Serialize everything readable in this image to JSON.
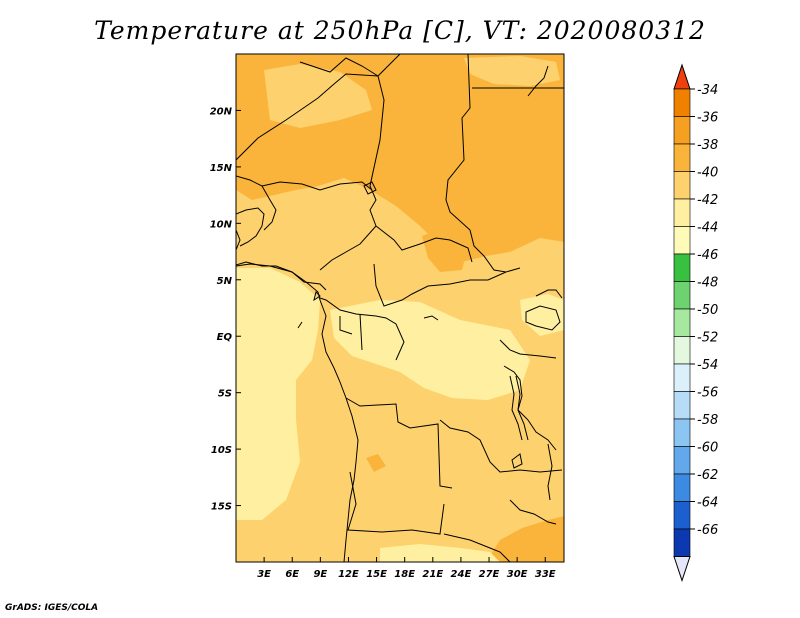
{
  "title": "Temperature at 250hPa [C], VT: 2020080312",
  "footer": "GrADS: IGES/COLA",
  "map": {
    "lon_range": [
      0,
      35
    ],
    "lat_range": [
      -20,
      25
    ],
    "lat_ticks": [
      {
        "lat": 20,
        "label": "20N"
      },
      {
        "lat": 15,
        "label": "15N"
      },
      {
        "lat": 10,
        "label": "10N"
      },
      {
        "lat": 5,
        "label": "5N"
      },
      {
        "lat": 0,
        "label": "EQ"
      },
      {
        "lat": -5,
        "label": "5S"
      },
      {
        "lat": -10,
        "label": "10S"
      },
      {
        "lat": -15,
        "label": "15S"
      }
    ],
    "lon_ticks": [
      {
        "lon": 3,
        "label": "3E"
      },
      {
        "lon": 6,
        "label": "6E"
      },
      {
        "lon": 9,
        "label": "9E"
      },
      {
        "lon": 12,
        "label": "12E"
      },
      {
        "lon": 15,
        "label": "15E"
      },
      {
        "lon": 18,
        "label": "18E"
      },
      {
        "lon": 21,
        "label": "21E"
      },
      {
        "lon": 24,
        "label": "24E"
      },
      {
        "lon": 27,
        "label": "27E"
      },
      {
        "lon": 30,
        "label": "30E"
      },
      {
        "lon": 33,
        "label": "33E"
      }
    ]
  },
  "colorbar": {
    "levels": [
      {
        "label": "-34",
        "color": "#f08000"
      },
      {
        "label": "-36",
        "color": "#f5a020"
      },
      {
        "label": "-38",
        "color": "#fab43c"
      },
      {
        "label": "-40",
        "color": "#fdd26e"
      },
      {
        "label": "-42",
        "color": "#fef0a0"
      },
      {
        "label": "-44",
        "color": "#fefab8"
      },
      {
        "label": "-46",
        "color": "#38c040"
      },
      {
        "label": "-48",
        "color": "#6ed270"
      },
      {
        "label": "-50",
        "color": "#a6e8a0"
      },
      {
        "label": "-52",
        "color": "#e4f8e0"
      },
      {
        "label": "-54",
        "color": "#dcf0fc"
      },
      {
        "label": "-56",
        "color": "#b6dcf8"
      },
      {
        "label": "-58",
        "color": "#8cc4f2"
      },
      {
        "label": "-60",
        "color": "#64a8ec"
      },
      {
        "label": "-62",
        "color": "#3c8ae2"
      },
      {
        "label": "-64",
        "color": "#1c60d0"
      },
      {
        "label": "-66",
        "color": "#0c38b0"
      }
    ],
    "top_color": "#f04010",
    "bottom_color": "#0a0a78",
    "below_color": "#e6e6fa"
  }
}
